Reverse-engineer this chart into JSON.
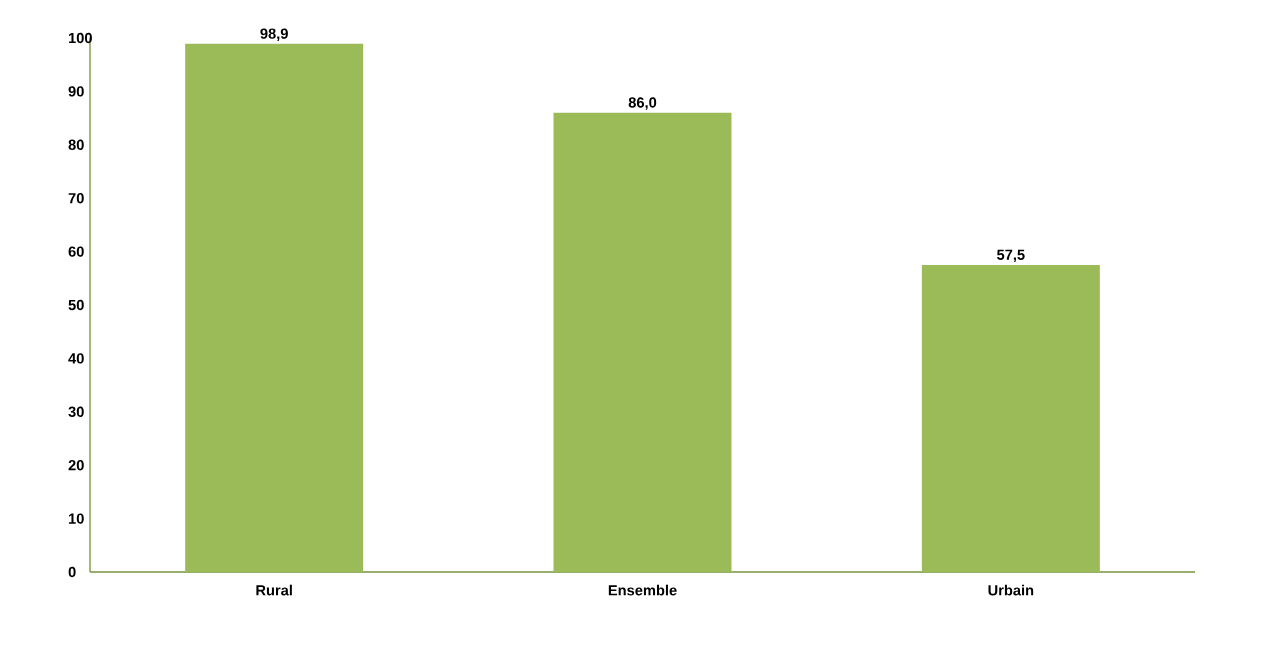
{
  "chart_data": {
    "type": "bar",
    "categories": [
      "Rural",
      "Ensemble",
      "Urbain"
    ],
    "values": [
      98.9,
      86.0,
      57.5
    ],
    "value_labels": [
      "98,9",
      "86,0",
      "57,5"
    ],
    "color": "#9bbb59",
    "ylim": [
      0,
      100
    ],
    "yticks": [
      0,
      10,
      20,
      30,
      40,
      50,
      60,
      70,
      80,
      90,
      100
    ],
    "grid": false
  }
}
